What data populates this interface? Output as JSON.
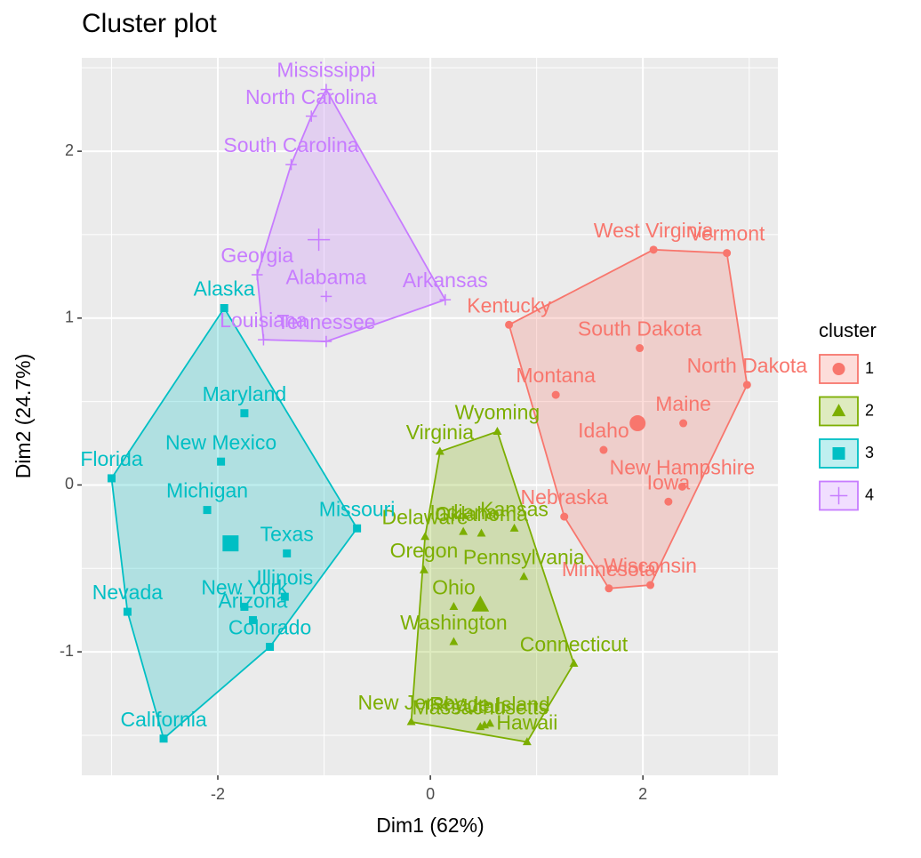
{
  "chart_data": {
    "type": "scatter",
    "title": "Cluster plot",
    "xlabel": "Dim1 (62%)",
    "ylabel": "Dim2 (24.7%)",
    "xlim": [
      -3.28,
      3.27
    ],
    "ylim": [
      -1.74,
      2.56
    ],
    "xticks": [
      -2,
      0,
      2
    ],
    "yticks": [
      -1,
      0,
      1,
      2
    ],
    "grid": true,
    "legend": "right",
    "legend_title": "cluster",
    "series": [
      {
        "name": "1",
        "color": "#F8766D",
        "shape": "circle",
        "labels": [
          "West Virginia",
          "Vermont",
          "Kentucky",
          "South Dakota",
          "North Dakota",
          "Montana",
          "Maine",
          "Idaho",
          "New Hampshire",
          "Iowa",
          "Nebraska",
          "Wisconsin",
          "Minnesota"
        ],
        "x": [
          2.1,
          2.79,
          0.74,
          1.97,
          2.98,
          1.18,
          2.38,
          1.63,
          2.37,
          2.24,
          1.26,
          2.07,
          1.68
        ],
        "y": [
          1.41,
          1.39,
          0.96,
          0.82,
          0.6,
          0.54,
          0.37,
          0.21,
          -0.01,
          -0.1,
          -0.19,
          -0.6,
          -0.62
        ],
        "centroid": {
          "x": 1.95,
          "y": 0.37
        }
      },
      {
        "name": "2",
        "color": "#7CAE00",
        "shape": "triangle",
        "labels": [
          "Wyoming",
          "Virginia",
          "Indiana",
          "Kansas",
          "Delaware",
          "Oklahoma",
          "Oregon",
          "Pennsylvania",
          "Ohio",
          "Washington",
          "Connecticut",
          "New Jersey",
          "Massachusetts",
          "Utah",
          "Rhode Island",
          "Hawaii"
        ],
        "x": [
          0.63,
          0.09,
          0.31,
          0.79,
          -0.05,
          0.48,
          -0.06,
          0.88,
          0.22,
          0.22,
          1.35,
          -0.18,
          0.47,
          0.51,
          0.56,
          0.91
        ],
        "y": [
          0.32,
          0.2,
          -0.28,
          -0.26,
          -0.31,
          -0.29,
          -0.51,
          -0.55,
          -0.73,
          -0.94,
          -1.07,
          -1.42,
          -1.45,
          -1.44,
          -1.43,
          -1.54
        ],
        "centroid": {
          "x": 0.47,
          "y": -0.72
        }
      },
      {
        "name": "3",
        "color": "#00BFC4",
        "shape": "square",
        "labels": [
          "Alaska",
          "Maryland",
          "New Mexico",
          "Florida",
          "Michigan",
          "Missouri",
          "Texas",
          "Illinois",
          "New York",
          "Arizona",
          "Colorado",
          "Nevada",
          "California"
        ],
        "x": [
          -1.94,
          -1.75,
          -1.97,
          -3.0,
          -2.1,
          -0.69,
          -1.35,
          -1.37,
          -1.75,
          -1.67,
          -1.51,
          -2.85,
          -2.51
        ],
        "y": [
          1.06,
          0.43,
          0.14,
          0.04,
          -0.15,
          -0.26,
          -0.41,
          -0.67,
          -0.73,
          -0.81,
          -0.97,
          -0.76,
          -1.52
        ],
        "centroid": {
          "x": -1.88,
          "y": -0.35
        }
      },
      {
        "name": "4",
        "color": "#C77CFF",
        "shape": "plus",
        "labels": [
          "Mississippi",
          "North Carolina",
          "South Carolina",
          "Georgia",
          "Arkansas",
          "Alabama",
          "Louisiana",
          "Tennessee"
        ],
        "x": [
          -0.98,
          -1.12,
          -1.31,
          -1.63,
          0.14,
          -0.98,
          -1.57,
          -0.98
        ],
        "y": [
          2.37,
          2.21,
          1.92,
          1.26,
          1.11,
          1.13,
          0.87,
          0.86
        ],
        "centroid": {
          "x": -1.05,
          "y": 1.47
        }
      }
    ]
  }
}
